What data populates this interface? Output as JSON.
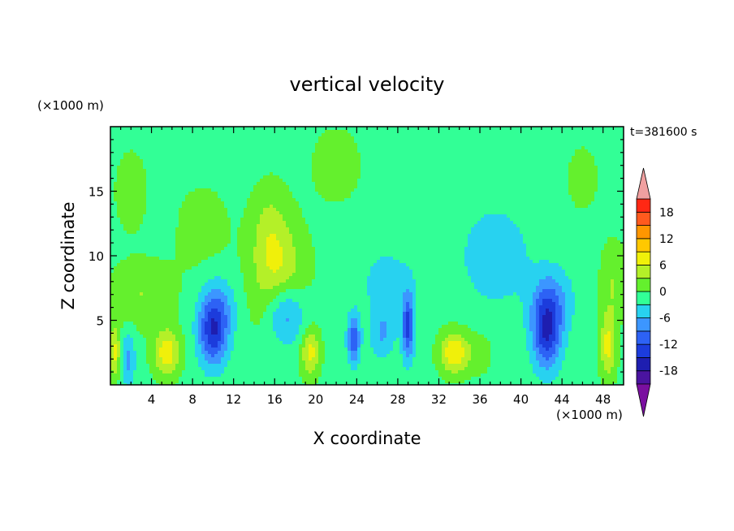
{
  "chart_data": {
    "type": "heatmap",
    "title": "vertical velocity",
    "xlabel": "X coordinate",
    "ylabel": "Z coordinate",
    "x_unit": "(×1000 m)",
    "y_unit": "(×1000 m)",
    "time_label": "t=381600 s",
    "xlim": [
      0,
      50
    ],
    "ylim": [
      0,
      20
    ],
    "x_ticks": [
      "4",
      "8",
      "12",
      "16",
      "20",
      "24",
      "28",
      "32",
      "36",
      "40",
      "44",
      "48"
    ],
    "y_ticks": [
      "5",
      "10",
      "15"
    ],
    "colorbar": {
      "tick_labels": [
        "18",
        "12",
        "6",
        "0",
        "-6",
        "-12",
        "-18"
      ],
      "levels": [
        -21,
        -18,
        -15,
        -12,
        -9,
        -6,
        -3,
        0,
        3,
        6,
        9,
        12,
        15,
        18,
        21
      ],
      "colors": [
        "#7a0fa0",
        "#4a14a0",
        "#1e1eb0",
        "#1c3cdc",
        "#2d62f5",
        "#3c96ff",
        "#28d2f0",
        "#32ff96",
        "#64f02d",
        "#b4f028",
        "#f0f00a",
        "#ffc800",
        "#ff9600",
        "#ff5a1e",
        "#ff2814",
        "#f0a0a0"
      ]
    },
    "background_value": -1,
    "features": [
      {
        "x": 17,
        "z": 5.5,
        "w": -11,
        "sx": 2.0,
        "sz": 2.6
      },
      {
        "x": 16.5,
        "z": 7.5,
        "w": 8,
        "sx": 2.6,
        "sz": 4.5
      },
      {
        "x": 15.5,
        "z": 12,
        "w": 4,
        "sx": 1.8,
        "sz": 3.5
      },
      {
        "x": 10,
        "z": 4,
        "w": -12,
        "sx": 1.4,
        "sz": 2.6
      },
      {
        "x": 10.5,
        "z": 6,
        "w": -5,
        "sx": 1.8,
        "sz": 2.5
      },
      {
        "x": 5.5,
        "z": 2.5,
        "w": 9,
        "sx": 1.3,
        "sz": 1.8
      },
      {
        "x": 0.4,
        "z": 2.5,
        "w": 8,
        "sx": 0.6,
        "sz": 2
      },
      {
        "x": 1.7,
        "z": 2,
        "w": -6,
        "sx": 0.7,
        "sz": 2
      },
      {
        "x": 3,
        "z": 7,
        "w": 4,
        "sx": 3,
        "sz": 2.5
      },
      {
        "x": 19.5,
        "z": 2.5,
        "w": 8,
        "sx": 0.9,
        "sz": 1.8
      },
      {
        "x": 23.7,
        "z": 3.5,
        "w": -11,
        "sx": 0.6,
        "sz": 1.8
      },
      {
        "x": 29,
        "z": 4.5,
        "w": -12,
        "sx": 0.6,
        "sz": 2.5
      },
      {
        "x": 26.5,
        "z": 4,
        "w": -5,
        "sx": 1.2,
        "sz": 2
      },
      {
        "x": 33.5,
        "z": 2.5,
        "w": 10,
        "sx": 1.4,
        "sz": 1.6
      },
      {
        "x": 42.5,
        "z": 4,
        "w": -13,
        "sx": 1.4,
        "sz": 2.8
      },
      {
        "x": 43,
        "z": 6.5,
        "w": -6,
        "sx": 2,
        "sz": 2.5
      },
      {
        "x": 37.5,
        "z": 10,
        "w": -4,
        "sx": 3.5,
        "sz": 4
      },
      {
        "x": 27,
        "z": 8,
        "w": -3,
        "sx": 3,
        "sz": 3
      },
      {
        "x": 48.5,
        "z": 3,
        "w": 8,
        "sx": 0.8,
        "sz": 2.5
      },
      {
        "x": 49,
        "z": 8,
        "w": 4,
        "sx": 1.2,
        "sz": 3
      },
      {
        "x": 22,
        "z": 17,
        "w": 2.5,
        "sx": 2.5,
        "sz": 3
      },
      {
        "x": 9,
        "z": 12,
        "w": 2,
        "sx": 3,
        "sz": 4
      },
      {
        "x": 2,
        "z": 15,
        "w": 3,
        "sx": 1.5,
        "sz": 3
      },
      {
        "x": 46,
        "z": 16,
        "w": 2.5,
        "sx": 1.5,
        "sz": 2.5
      },
      {
        "x": 36,
        "z": 2.5,
        "w": 2,
        "sx": 1.5,
        "sz": 2
      }
    ]
  }
}
